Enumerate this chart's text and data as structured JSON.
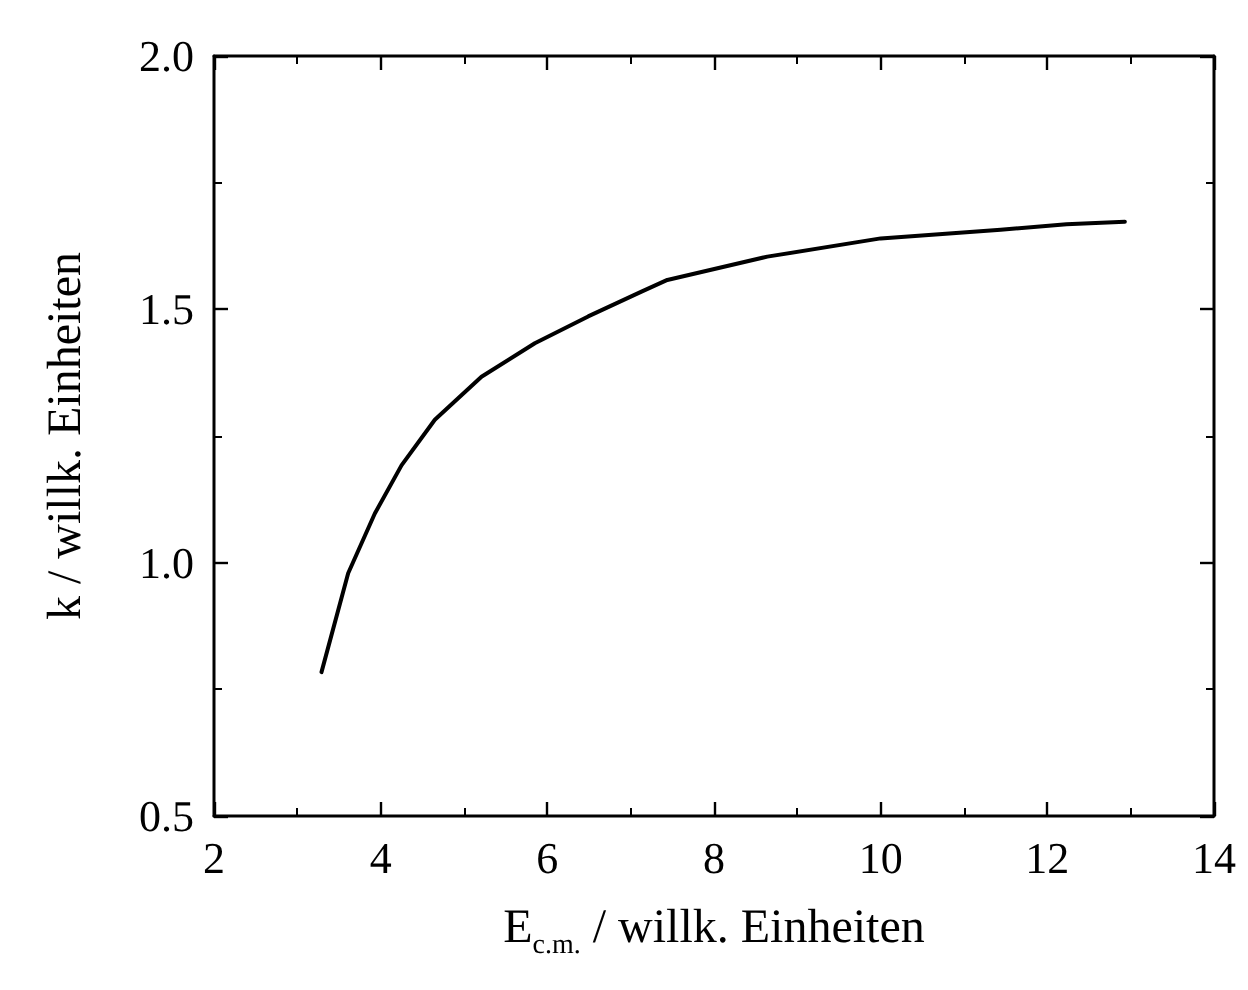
{
  "chart_data": {
    "type": "line",
    "xlabel": "E$_{c.m.}$ / willk. Einheiten",
    "ylabel": "k / willk. Einheiten",
    "xlim": [
      2,
      14
    ],
    "xticks": [
      2,
      4,
      6,
      8,
      10,
      12,
      14
    ],
    "ylim": [
      0.5,
      2.0
    ],
    "yticks": [
      0.5,
      {
        "value": 1,
        "label": "1.0"
      },
      1.5,
      {
        "value": 2,
        "label": "2.0"
      }
    ],
    "marker": "none",
    "line_style": "solid",
    "series": [
      {
        "color": "#000000",
        "x": [
          3.29,
          3.61,
          3.93,
          4.25,
          4.65,
          5.21,
          5.85,
          6.49,
          7.13,
          7.44,
          8.64,
          10.0,
          11.44,
          12.23,
          12.93
        ],
        "values": [
          0.784,
          0.979,
          1.097,
          1.192,
          1.282,
          1.367,
          1.433,
          1.486,
          1.535,
          1.558,
          1.604,
          1.64,
          1.657,
          1.668,
          1.673
        ]
      }
    ]
  }
}
